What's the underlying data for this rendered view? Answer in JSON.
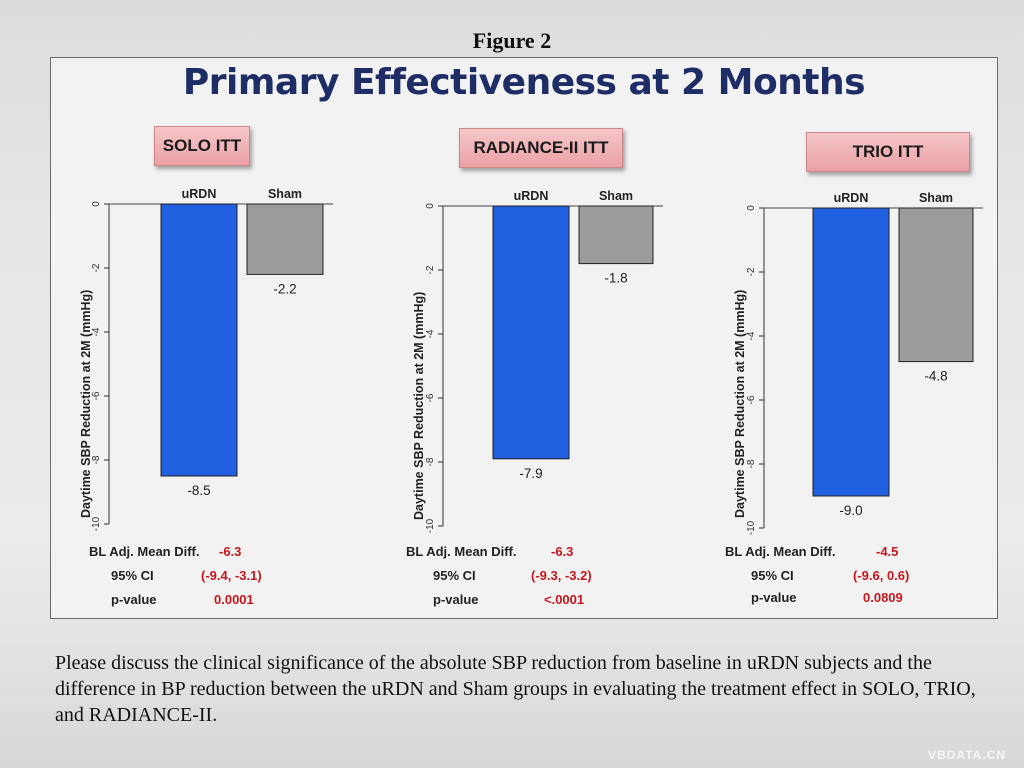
{
  "figure_label": "Figure 2",
  "slide_title": "Primary Effectiveness at 2 Months",
  "colors": {
    "urdn": "#1f5fe0",
    "sham": "#9b9b9b",
    "stat_value": "#c4161c",
    "title": "#1f2d66"
  },
  "chart_data": [
    {
      "type": "bar",
      "title": "SOLO ITT",
      "categories": [
        "uRDN",
        "Sham"
      ],
      "values": [
        -8.5,
        -2.2
      ],
      "value_labels": [
        "-8.5",
        "-2.2"
      ],
      "ylabel": "Daytime SBP Reduction at 2M (mmHg)",
      "ylim": [
        -10,
        0
      ],
      "yticks": [
        "0",
        "-2",
        "-4",
        "-6",
        "-8",
        "-10"
      ],
      "stats": {
        "mean_diff_label": "BL Adj. Mean Diff.",
        "mean_diff": "-6.3",
        "ci_label": "95% CI",
        "ci": "(-9.4, -3.1)",
        "p_label": "p-value",
        "p": "0.0001"
      }
    },
    {
      "type": "bar",
      "title": "RADIANCE-II ITT",
      "categories": [
        "uRDN",
        "Sham"
      ],
      "values": [
        -7.9,
        -1.8
      ],
      "value_labels": [
        "-7.9",
        "-1.8"
      ],
      "ylabel": "Daytime SBP Reduction at 2M (mmHg)",
      "ylim": [
        -10,
        0
      ],
      "yticks": [
        "0",
        "-2",
        "-4",
        "-6",
        "-8",
        "-10"
      ],
      "stats": {
        "mean_diff_label": "BL Adj. Mean Diff.",
        "mean_diff": "-6.3",
        "ci_label": "95% CI",
        "ci": "(-9.3, -3.2)",
        "p_label": "p-value",
        "p": "<.0001"
      }
    },
    {
      "type": "bar",
      "title": "TRIO ITT",
      "categories": [
        "uRDN",
        "Sham"
      ],
      "values": [
        -9.0,
        -4.8
      ],
      "value_labels": [
        "-9.0",
        "-4.8"
      ],
      "ylabel": "Daytime SBP Reduction at 2M (mmHg)",
      "ylim": [
        -10,
        0
      ],
      "yticks": [
        "0",
        "-2",
        "-4",
        "-6",
        "-8",
        "-10"
      ],
      "stats": {
        "mean_diff_label": "BL Adj. Mean Diff.",
        "mean_diff": "-4.5",
        "ci_label": "95% CI",
        "ci": "(-9.6, 0.6)",
        "p_label": "p-value",
        "p": "0.0809"
      }
    }
  ],
  "question_text": "Please discuss the clinical significance of the absolute SBP reduction from baseline in uRDN subjects and the difference in BP reduction between the uRDN and Sham groups in evaluating the treatment effect in SOLO, TRIO, and RADIANCE-II.",
  "watermark": "VBDATA.CN"
}
